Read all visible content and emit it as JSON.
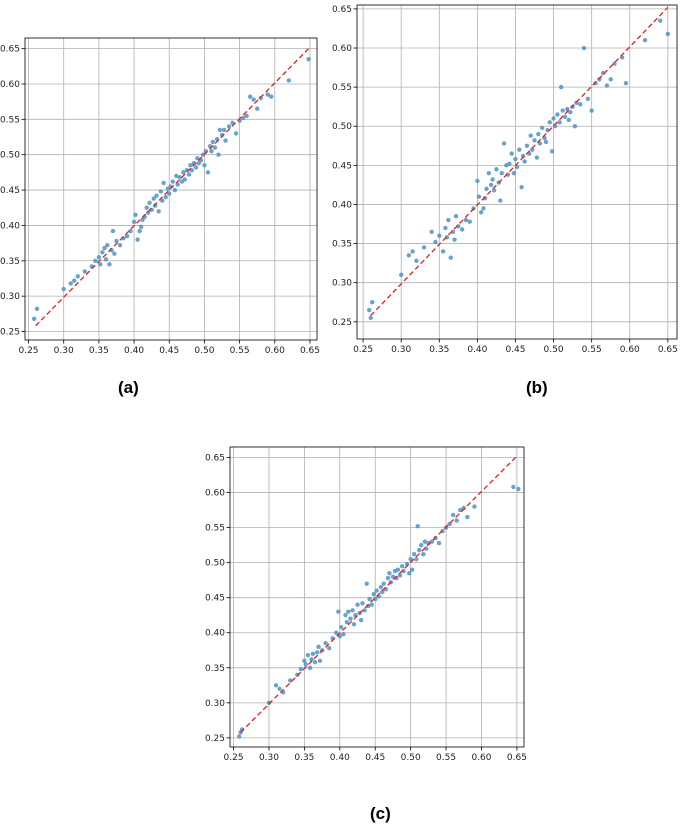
{
  "chart_data": [
    {
      "type": "scatter",
      "caption": "(a)",
      "xlim": [
        0.245,
        0.66
      ],
      "ylim": [
        0.238,
        0.665
      ],
      "xticks": [
        "0.25",
        "0.30",
        "0.35",
        "0.40",
        "0.45",
        "0.50",
        "0.55",
        "0.60",
        "0.65"
      ],
      "yticks": [
        "0.25",
        "0.30",
        "0.35",
        "0.40",
        "0.45",
        "0.50",
        "0.55",
        "0.60",
        "0.65"
      ],
      "grid": true,
      "point_color": "#4f93c4",
      "reference_line": {
        "x": [
          0.26,
          0.65
        ],
        "y": [
          0.258,
          0.652
        ],
        "color": "#e02020",
        "style": "dashed"
      },
      "points": [
        [
          0.258,
          0.268
        ],
        [
          0.262,
          0.282
        ],
        [
          0.3,
          0.31
        ],
        [
          0.31,
          0.318
        ],
        [
          0.315,
          0.322
        ],
        [
          0.32,
          0.328
        ],
        [
          0.33,
          0.335
        ],
        [
          0.34,
          0.342
        ],
        [
          0.345,
          0.35
        ],
        [
          0.35,
          0.355
        ],
        [
          0.352,
          0.345
        ],
        [
          0.355,
          0.362
        ],
        [
          0.358,
          0.368
        ],
        [
          0.36,
          0.352
        ],
        [
          0.362,
          0.372
        ],
        [
          0.365,
          0.345
        ],
        [
          0.368,
          0.365
        ],
        [
          0.37,
          0.392
        ],
        [
          0.372,
          0.36
        ],
        [
          0.375,
          0.378
        ],
        [
          0.38,
          0.372
        ],
        [
          0.385,
          0.382
        ],
        [
          0.39,
          0.385
        ],
        [
          0.395,
          0.392
        ],
        [
          0.4,
          0.405
        ],
        [
          0.402,
          0.415
        ],
        [
          0.405,
          0.38
        ],
        [
          0.408,
          0.392
        ],
        [
          0.41,
          0.398
        ],
        [
          0.412,
          0.408
        ],
        [
          0.415,
          0.412
        ],
        [
          0.418,
          0.425
        ],
        [
          0.42,
          0.418
        ],
        [
          0.422,
          0.432
        ],
        [
          0.425,
          0.422
        ],
        [
          0.428,
          0.438
        ],
        [
          0.43,
          0.428
        ],
        [
          0.432,
          0.442
        ],
        [
          0.435,
          0.42
        ],
        [
          0.438,
          0.448
        ],
        [
          0.44,
          0.435
        ],
        [
          0.442,
          0.46
        ],
        [
          0.445,
          0.44
        ],
        [
          0.448,
          0.452
        ],
        [
          0.45,
          0.445
        ],
        [
          0.452,
          0.455
        ],
        [
          0.455,
          0.462
        ],
        [
          0.458,
          0.45
        ],
        [
          0.46,
          0.47
        ],
        [
          0.462,
          0.458
        ],
        [
          0.465,
          0.468
        ],
        [
          0.468,
          0.462
        ],
        [
          0.47,
          0.475
        ],
        [
          0.472,
          0.465
        ],
        [
          0.475,
          0.478
        ],
        [
          0.478,
          0.472
        ],
        [
          0.48,
          0.485
        ],
        [
          0.482,
          0.478
        ],
        [
          0.485,
          0.488
        ],
        [
          0.488,
          0.482
        ],
        [
          0.49,
          0.495
        ],
        [
          0.492,
          0.488
        ],
        [
          0.495,
          0.492
        ],
        [
          0.498,
          0.5
        ],
        [
          0.5,
          0.485
        ],
        [
          0.502,
          0.505
        ],
        [
          0.505,
          0.475
        ],
        [
          0.508,
          0.512
        ],
        [
          0.51,
          0.505
        ],
        [
          0.512,
          0.518
        ],
        [
          0.515,
          0.51
        ],
        [
          0.518,
          0.522
        ],
        [
          0.52,
          0.5
        ],
        [
          0.522,
          0.535
        ],
        [
          0.525,
          0.528
        ],
        [
          0.528,
          0.535
        ],
        [
          0.53,
          0.52
        ],
        [
          0.535,
          0.54
        ],
        [
          0.54,
          0.545
        ],
        [
          0.545,
          0.53
        ],
        [
          0.55,
          0.548
        ],
        [
          0.555,
          0.552
        ],
        [
          0.56,
          0.555
        ],
        [
          0.565,
          0.582
        ],
        [
          0.57,
          0.578
        ],
        [
          0.575,
          0.565
        ],
        [
          0.58,
          0.58
        ],
        [
          0.59,
          0.585
        ],
        [
          0.595,
          0.582
        ],
        [
          0.62,
          0.605
        ],
        [
          0.648,
          0.635
        ]
      ]
    },
    {
      "type": "scatter",
      "caption": "(b)",
      "xlim": [
        0.242,
        0.662
      ],
      "ylim": [
        0.228,
        0.655
      ],
      "xticks": [
        "0.25",
        "0.30",
        "0.35",
        "0.40",
        "0.45",
        "0.50",
        "0.55",
        "0.60",
        "0.65"
      ],
      "yticks": [
        "0.25",
        "0.30",
        "0.35",
        "0.40",
        "0.45",
        "0.50",
        "0.55",
        "0.60",
        "0.65"
      ],
      "grid": true,
      "point_color": "#4f93c4",
      "reference_line": {
        "x": [
          0.26,
          0.65
        ],
        "y": [
          0.258,
          0.652
        ],
        "color": "#e02020",
        "style": "dashed"
      },
      "points": [
        [
          0.258,
          0.265
        ],
        [
          0.26,
          0.255
        ],
        [
          0.262,
          0.275
        ],
        [
          0.3,
          0.31
        ],
        [
          0.31,
          0.335
        ],
        [
          0.315,
          0.34
        ],
        [
          0.32,
          0.328
        ],
        [
          0.33,
          0.345
        ],
        [
          0.34,
          0.365
        ],
        [
          0.345,
          0.352
        ],
        [
          0.35,
          0.36
        ],
        [
          0.355,
          0.34
        ],
        [
          0.358,
          0.37
        ],
        [
          0.36,
          0.358
        ],
        [
          0.362,
          0.38
        ],
        [
          0.365,
          0.332
        ],
        [
          0.368,
          0.365
        ],
        [
          0.37,
          0.355
        ],
        [
          0.372,
          0.385
        ],
        [
          0.375,
          0.372
        ],
        [
          0.38,
          0.368
        ],
        [
          0.385,
          0.38
        ],
        [
          0.39,
          0.378
        ],
        [
          0.395,
          0.395
        ],
        [
          0.4,
          0.43
        ],
        [
          0.402,
          0.41
        ],
        [
          0.405,
          0.39
        ],
        [
          0.408,
          0.395
        ],
        [
          0.41,
          0.408
        ],
        [
          0.412,
          0.42
        ],
        [
          0.415,
          0.44
        ],
        [
          0.418,
          0.425
        ],
        [
          0.42,
          0.432
        ],
        [
          0.422,
          0.418
        ],
        [
          0.425,
          0.445
        ],
        [
          0.428,
          0.428
        ],
        [
          0.43,
          0.405
        ],
        [
          0.432,
          0.44
        ],
        [
          0.435,
          0.478
        ],
        [
          0.438,
          0.45
        ],
        [
          0.44,
          0.438
        ],
        [
          0.442,
          0.452
        ],
        [
          0.445,
          0.465
        ],
        [
          0.448,
          0.44
        ],
        [
          0.45,
          0.458
        ],
        [
          0.452,
          0.448
        ],
        [
          0.455,
          0.47
        ],
        [
          0.458,
          0.422
        ],
        [
          0.46,
          0.462
        ],
        [
          0.462,
          0.455
        ],
        [
          0.465,
          0.475
        ],
        [
          0.468,
          0.465
        ],
        [
          0.47,
          0.488
        ],
        [
          0.472,
          0.47
        ],
        [
          0.475,
          0.482
        ],
        [
          0.478,
          0.46
        ],
        [
          0.48,
          0.49
        ],
        [
          0.482,
          0.478
        ],
        [
          0.485,
          0.498
        ],
        [
          0.488,
          0.485
        ],
        [
          0.49,
          0.48
        ],
        [
          0.492,
          0.495
        ],
        [
          0.495,
          0.505
        ],
        [
          0.498,
          0.468
        ],
        [
          0.5,
          0.51
        ],
        [
          0.502,
          0.5
        ],
        [
          0.505,
          0.515
        ],
        [
          0.508,
          0.505
        ],
        [
          0.51,
          0.55
        ],
        [
          0.512,
          0.52
        ],
        [
          0.515,
          0.512
        ],
        [
          0.518,
          0.522
        ],
        [
          0.52,
          0.508
        ],
        [
          0.522,
          0.518
        ],
        [
          0.525,
          0.525
        ],
        [
          0.528,
          0.5
        ],
        [
          0.53,
          0.53
        ],
        [
          0.535,
          0.528
        ],
        [
          0.54,
          0.6
        ],
        [
          0.545,
          0.535
        ],
        [
          0.55,
          0.52
        ],
        [
          0.555,
          0.555
        ],
        [
          0.56,
          0.56
        ],
        [
          0.565,
          0.568
        ],
        [
          0.57,
          0.552
        ],
        [
          0.575,
          0.56
        ],
        [
          0.58,
          0.58
        ],
        [
          0.59,
          0.588
        ],
        [
          0.595,
          0.555
        ],
        [
          0.62,
          0.61
        ],
        [
          0.64,
          0.635
        ],
        [
          0.65,
          0.618
        ]
      ]
    },
    {
      "type": "scatter",
      "caption": "(c)",
      "xlim": [
        0.245,
        0.66
      ],
      "ylim": [
        0.237,
        0.665
      ],
      "xticks": [
        "0.25",
        "0.30",
        "0.35",
        "0.40",
        "0.45",
        "0.50",
        "0.55",
        "0.60",
        "0.65"
      ],
      "yticks": [
        "0.25",
        "0.30",
        "0.35",
        "0.40",
        "0.45",
        "0.50",
        "0.55",
        "0.60",
        "0.65"
      ],
      "grid": true,
      "point_color": "#4f93c4",
      "reference_line": {
        "x": [
          0.26,
          0.65
        ],
        "y": [
          0.258,
          0.652
        ],
        "color": "#e02020",
        "style": "dashed"
      },
      "points": [
        [
          0.258,
          0.252
        ],
        [
          0.26,
          0.258
        ],
        [
          0.262,
          0.262
        ],
        [
          0.3,
          0.3
        ],
        [
          0.31,
          0.325
        ],
        [
          0.315,
          0.32
        ],
        [
          0.32,
          0.315
        ],
        [
          0.33,
          0.332
        ],
        [
          0.34,
          0.34
        ],
        [
          0.345,
          0.348
        ],
        [
          0.35,
          0.36
        ],
        [
          0.352,
          0.355
        ],
        [
          0.355,
          0.368
        ],
        [
          0.358,
          0.35
        ],
        [
          0.36,
          0.362
        ],
        [
          0.362,
          0.37
        ],
        [
          0.365,
          0.358
        ],
        [
          0.368,
          0.372
        ],
        [
          0.37,
          0.38
        ],
        [
          0.372,
          0.36
        ],
        [
          0.375,
          0.375
        ],
        [
          0.38,
          0.385
        ],
        [
          0.385,
          0.378
        ],
        [
          0.39,
          0.392
        ],
        [
          0.395,
          0.4
        ],
        [
          0.398,
          0.43
        ],
        [
          0.4,
          0.395
        ],
        [
          0.402,
          0.408
        ],
        [
          0.405,
          0.398
        ],
        [
          0.408,
          0.425
        ],
        [
          0.41,
          0.415
        ],
        [
          0.412,
          0.43
        ],
        [
          0.415,
          0.42
        ],
        [
          0.418,
          0.432
        ],
        [
          0.42,
          0.412
        ],
        [
          0.422,
          0.425
        ],
        [
          0.425,
          0.44
        ],
        [
          0.428,
          0.428
        ],
        [
          0.43,
          0.418
        ],
        [
          0.432,
          0.442
        ],
        [
          0.435,
          0.432
        ],
        [
          0.438,
          0.47
        ],
        [
          0.44,
          0.438
        ],
        [
          0.442,
          0.448
        ],
        [
          0.445,
          0.44
        ],
        [
          0.448,
          0.455
        ],
        [
          0.45,
          0.448
        ],
        [
          0.452,
          0.46
        ],
        [
          0.455,
          0.452
        ],
        [
          0.458,
          0.465
        ],
        [
          0.46,
          0.458
        ],
        [
          0.462,
          0.47
        ],
        [
          0.465,
          0.462
        ],
        [
          0.468,
          0.478
        ],
        [
          0.47,
          0.485
        ],
        [
          0.472,
          0.472
        ],
        [
          0.475,
          0.48
        ],
        [
          0.478,
          0.488
        ],
        [
          0.48,
          0.478
        ],
        [
          0.482,
          0.49
        ],
        [
          0.485,
          0.482
        ],
        [
          0.488,
          0.495
        ],
        [
          0.49,
          0.488
        ],
        [
          0.495,
          0.498
        ],
        [
          0.498,
          0.485
        ],
        [
          0.5,
          0.505
        ],
        [
          0.502,
          0.49
        ],
        [
          0.505,
          0.512
        ],
        [
          0.508,
          0.505
        ],
        [
          0.51,
          0.552
        ],
        [
          0.512,
          0.518
        ],
        [
          0.515,
          0.525
        ],
        [
          0.518,
          0.512
        ],
        [
          0.52,
          0.53
        ],
        [
          0.522,
          0.52
        ],
        [
          0.525,
          0.528
        ],
        [
          0.53,
          0.53
        ],
        [
          0.535,
          0.535
        ],
        [
          0.54,
          0.528
        ],
        [
          0.545,
          0.545
        ],
        [
          0.55,
          0.55
        ],
        [
          0.555,
          0.555
        ],
        [
          0.56,
          0.568
        ],
        [
          0.565,
          0.56
        ],
        [
          0.57,
          0.575
        ],
        [
          0.575,
          0.578
        ],
        [
          0.58,
          0.565
        ],
        [
          0.59,
          0.58
        ],
        [
          0.645,
          0.608
        ],
        [
          0.652,
          0.605
        ]
      ]
    }
  ]
}
